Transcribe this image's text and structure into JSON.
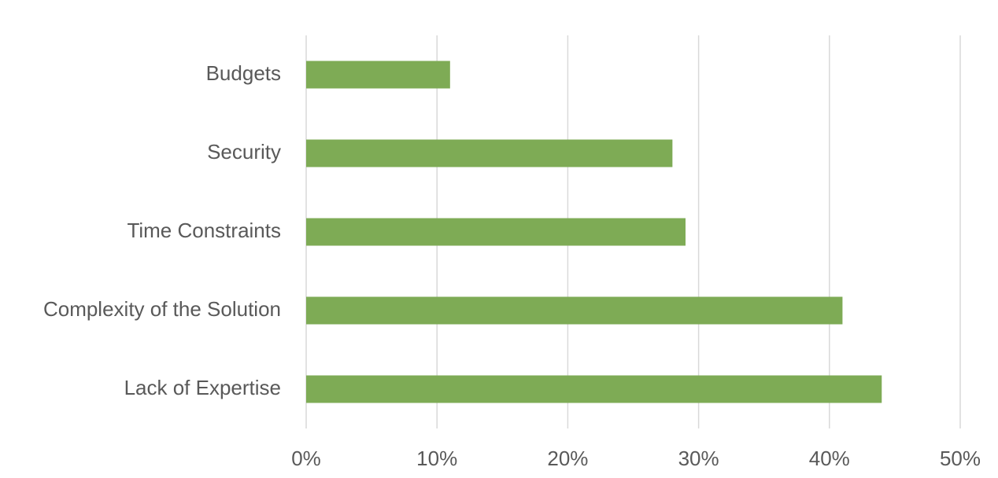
{
  "chart_data": {
    "type": "hbar",
    "categories": [
      "Budgets",
      "Security",
      "Time Constraints",
      "Complexity of the Solution",
      "Lack of Expertise"
    ],
    "values": [
      11,
      28,
      29,
      41,
      44
    ],
    "color": "#7eab55",
    "xlim": [
      0,
      50
    ],
    "xticks": [
      {
        "value": 0,
        "label": "0%"
      },
      {
        "value": 10,
        "label": "10%"
      },
      {
        "value": 20,
        "label": "20%"
      },
      {
        "value": 30,
        "label": "30%"
      },
      {
        "value": 40,
        "label": "40%"
      },
      {
        "value": 50,
        "label": "50%"
      }
    ],
    "grid": true
  }
}
